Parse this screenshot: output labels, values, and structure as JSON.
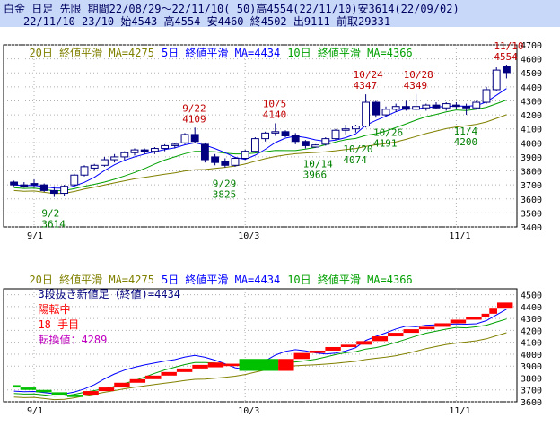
{
  "header": {
    "line1": "白金 日足 先限 期間22/08/29～22/11/10( 50)高4554(22/11/10)安3614(22/09/02)",
    "line2": "22/11/10 23/10 始4543 高4554 安4460 終4502 出9111 前取29331"
  },
  "ma_legend": {
    "ma20": "20日 終値平滑 MA=4275",
    "ma5": "5日 終値平滑 MA=4434",
    "ma10": "10日 終値平滑 MA=4366"
  },
  "renko_legend": {
    "part1": "3段抜き新値足（終値)=4434",
    "part2": "陽転中",
    "part3": "18 手目",
    "part4": "転換値：4289"
  },
  "colors": {
    "up": "#ffffff",
    "down": "#000080",
    "ma5": "#0000ff",
    "ma10": "#00a000",
    "ma20": "#808000",
    "renko_up": "#ff0000",
    "renko_down": "#00c000",
    "annot_hi": "#c00000",
    "annot_lo": "#008000"
  },
  "chart_data": [
    {
      "type": "candlestick",
      "x_ticks": [
        "9/1",
        "10/3",
        "11/1"
      ],
      "ylim": [
        3400,
        4700
      ],
      "y_ticks": [
        3400,
        3500,
        3600,
        3700,
        3800,
        3900,
        4000,
        4100,
        4200,
        4300,
        4400,
        4500,
        4600,
        4700
      ],
      "candles": [
        {
          "o": 3720,
          "h": 3730,
          "l": 3690,
          "c": 3700
        },
        {
          "o": 3700,
          "h": 3720,
          "l": 3680,
          "c": 3690
        },
        {
          "o": 3710,
          "h": 3740,
          "l": 3680,
          "c": 3700
        },
        {
          "o": 3700,
          "h": 3710,
          "l": 3650,
          "c": 3660
        },
        {
          "o": 3660,
          "h": 3690,
          "l": 3614,
          "c": 3640
        },
        {
          "o": 3640,
          "h": 3700,
          "l": 3620,
          "c": 3690
        },
        {
          "o": 3700,
          "h": 3780,
          "l": 3690,
          "c": 3770
        },
        {
          "o": 3770,
          "h": 3840,
          "l": 3760,
          "c": 3830
        },
        {
          "o": 3820,
          "h": 3850,
          "l": 3800,
          "c": 3840
        },
        {
          "o": 3840,
          "h": 3900,
          "l": 3830,
          "c": 3880
        },
        {
          "o": 3880,
          "h": 3920,
          "l": 3860,
          "c": 3900
        },
        {
          "o": 3900,
          "h": 3940,
          "l": 3880,
          "c": 3930
        },
        {
          "o": 3930,
          "h": 3960,
          "l": 3910,
          "c": 3950
        },
        {
          "o": 3950,
          "h": 3960,
          "l": 3920,
          "c": 3940
        },
        {
          "o": 3940,
          "h": 3970,
          "l": 3920,
          "c": 3960
        },
        {
          "o": 3960,
          "h": 3990,
          "l": 3940,
          "c": 3980
        },
        {
          "o": 3980,
          "h": 4000,
          "l": 3960,
          "c": 3990
        },
        {
          "o": 4000,
          "h": 4070,
          "l": 3990,
          "c": 4060
        },
        {
          "o": 4060,
          "h": 4109,
          "l": 4000,
          "c": 4010
        },
        {
          "o": 3990,
          "h": 4000,
          "l": 3860,
          "c": 3880
        },
        {
          "o": 3900,
          "h": 3920,
          "l": 3840,
          "c": 3860
        },
        {
          "o": 3870,
          "h": 3890,
          "l": 3825,
          "c": 3840
        },
        {
          "o": 3840,
          "h": 3900,
          "l": 3830,
          "c": 3890
        },
        {
          "o": 3890,
          "h": 3950,
          "l": 3880,
          "c": 3940
        },
        {
          "o": 3940,
          "h": 4040,
          "l": 3930,
          "c": 4030
        },
        {
          "o": 4030,
          "h": 4080,
          "l": 4010,
          "c": 4070
        },
        {
          "o": 4070,
          "h": 4140,
          "l": 4050,
          "c": 4080
        },
        {
          "o": 4080,
          "h": 4090,
          "l": 4040,
          "c": 4050
        },
        {
          "o": 4050,
          "h": 4070,
          "l": 3990,
          "c": 4010
        },
        {
          "o": 4010,
          "h": 4020,
          "l": 3960,
          "c": 3980
        },
        {
          "o": 3970,
          "h": 3990,
          "l": 3966,
          "c": 3985
        },
        {
          "o": 3990,
          "h": 4040,
          "l": 3980,
          "c": 4030
        },
        {
          "o": 4030,
          "h": 4100,
          "l": 4020,
          "c": 4090
        },
        {
          "o": 4090,
          "h": 4130,
          "l": 4060,
          "c": 4100
        },
        {
          "o": 4100,
          "h": 4130,
          "l": 4074,
          "c": 4120
        },
        {
          "o": 4120,
          "h": 4347,
          "l": 4110,
          "c": 4290
        },
        {
          "o": 4290,
          "h": 4300,
          "l": 4180,
          "c": 4200
        },
        {
          "o": 4200,
          "h": 4260,
          "l": 4191,
          "c": 4240
        },
        {
          "o": 4240,
          "h": 4280,
          "l": 4220,
          "c": 4260
        },
        {
          "o": 4260,
          "h": 4300,
          "l": 4230,
          "c": 4240
        },
        {
          "o": 4240,
          "h": 4349,
          "l": 4230,
          "c": 4260
        },
        {
          "o": 4250,
          "h": 4280,
          "l": 4230,
          "c": 4270
        },
        {
          "o": 4270,
          "h": 4290,
          "l": 4240,
          "c": 4250
        },
        {
          "o": 4250,
          "h": 4290,
          "l": 4230,
          "c": 4280
        },
        {
          "o": 4270,
          "h": 4290,
          "l": 4240,
          "c": 4260
        },
        {
          "o": 4260,
          "h": 4280,
          "l": 4200,
          "c": 4250
        },
        {
          "o": 4250,
          "h": 4300,
          "l": 4240,
          "c": 4290
        },
        {
          "o": 4290,
          "h": 4400,
          "l": 4280,
          "c": 4380
        },
        {
          "o": 4380,
          "h": 4540,
          "l": 4370,
          "c": 4520
        },
        {
          "o": 4543,
          "h": 4554,
          "l": 4460,
          "c": 4502
        }
      ],
      "annotations": [
        {
          "label": "9/2",
          "value": "3614",
          "i": 4,
          "type": "low"
        },
        {
          "label": "9/22",
          "value": "4109",
          "i": 18,
          "type": "high"
        },
        {
          "label": "9/29",
          "value": "3825",
          "i": 21,
          "type": "low"
        },
        {
          "label": "10/5",
          "value": "4140",
          "i": 26,
          "type": "high"
        },
        {
          "label": "10/14",
          "value": "3966",
          "i": 30,
          "type": "low"
        },
        {
          "label": "10/20",
          "value": "4074",
          "i": 34,
          "type": "low"
        },
        {
          "label": "10/24",
          "value": "4347",
          "i": 35,
          "type": "high"
        },
        {
          "label": "10/26",
          "value": "4191",
          "i": 37,
          "type": "low"
        },
        {
          "label": "10/28",
          "value": "4349",
          "i": 40,
          "type": "high"
        },
        {
          "label": "11/4",
          "value": "4200",
          "i": 45,
          "type": "low"
        },
        {
          "label": "11/10",
          "value": "4554",
          "i": 49,
          "type": "high"
        }
      ]
    },
    {
      "type": "renko",
      "x_ticks": [
        "9/1",
        "10/3",
        "11/1"
      ],
      "ylim": [
        3600,
        4550
      ],
      "y_ticks": [
        3600,
        3700,
        3800,
        3900,
        4000,
        4100,
        4200,
        4300,
        4400,
        4500
      ],
      "bricks": [
        {
          "i": 0,
          "lo": 3720,
          "hi": 3740,
          "up": false
        },
        {
          "i": 1,
          "lo": 3700,
          "hi": 3720,
          "up": false
        },
        {
          "i": 3,
          "lo": 3680,
          "hi": 3700,
          "up": false
        },
        {
          "i": 5,
          "lo": 3660,
          "hi": 3680,
          "up": false
        },
        {
          "i": 7,
          "lo": 3640,
          "hi": 3660,
          "up": false
        },
        {
          "i": 9,
          "lo": 3660,
          "hi": 3690,
          "up": true
        },
        {
          "i": 11,
          "lo": 3690,
          "hi": 3720,
          "up": true
        },
        {
          "i": 13,
          "lo": 3720,
          "hi": 3760,
          "up": true
        },
        {
          "i": 15,
          "lo": 3760,
          "hi": 3790,
          "up": true
        },
        {
          "i": 17,
          "lo": 3790,
          "hi": 3820,
          "up": true
        },
        {
          "i": 19,
          "lo": 3820,
          "hi": 3850,
          "up": true
        },
        {
          "i": 21,
          "lo": 3850,
          "hi": 3880,
          "up": true
        },
        {
          "i": 23,
          "lo": 3880,
          "hi": 3910,
          "up": true
        },
        {
          "i": 25,
          "lo": 3890,
          "hi": 3930,
          "up": true
        },
        {
          "i": 27,
          "lo": 3900,
          "hi": 3920,
          "up": true
        },
        {
          "i": 29,
          "lo": 3860,
          "hi": 3960,
          "up": false
        },
        {
          "i": 34,
          "lo": 3860,
          "hi": 3960,
          "up": true
        },
        {
          "i": 36,
          "lo": 3960,
          "hi": 4010,
          "up": true
        },
        {
          "i": 38,
          "lo": 4010,
          "hi": 4030,
          "up": true
        },
        {
          "i": 40,
          "lo": 4030,
          "hi": 4060,
          "up": true
        },
        {
          "i": 42,
          "lo": 4060,
          "hi": 4080,
          "up": true
        },
        {
          "i": 44,
          "lo": 4080,
          "hi": 4110,
          "up": true
        },
        {
          "i": 46,
          "lo": 4110,
          "hi": 4150,
          "up": true
        },
        {
          "i": 48,
          "lo": 4150,
          "hi": 4180,
          "up": true
        },
        {
          "i": 50,
          "lo": 4180,
          "hi": 4210,
          "up": true
        },
        {
          "i": 52,
          "lo": 4210,
          "hi": 4230,
          "up": true
        },
        {
          "i": 54,
          "lo": 4230,
          "hi": 4260,
          "up": true
        },
        {
          "i": 56,
          "lo": 4260,
          "hi": 4290,
          "up": true
        },
        {
          "i": 58,
          "lo": 4290,
          "hi": 4310,
          "up": true
        },
        {
          "i": 60,
          "lo": 4310,
          "hi": 4340,
          "up": true
        },
        {
          "i": 61,
          "lo": 4340,
          "hi": 4390,
          "up": true
        },
        {
          "i": 62,
          "lo": 4390,
          "hi": 4434,
          "up": true
        }
      ]
    }
  ]
}
